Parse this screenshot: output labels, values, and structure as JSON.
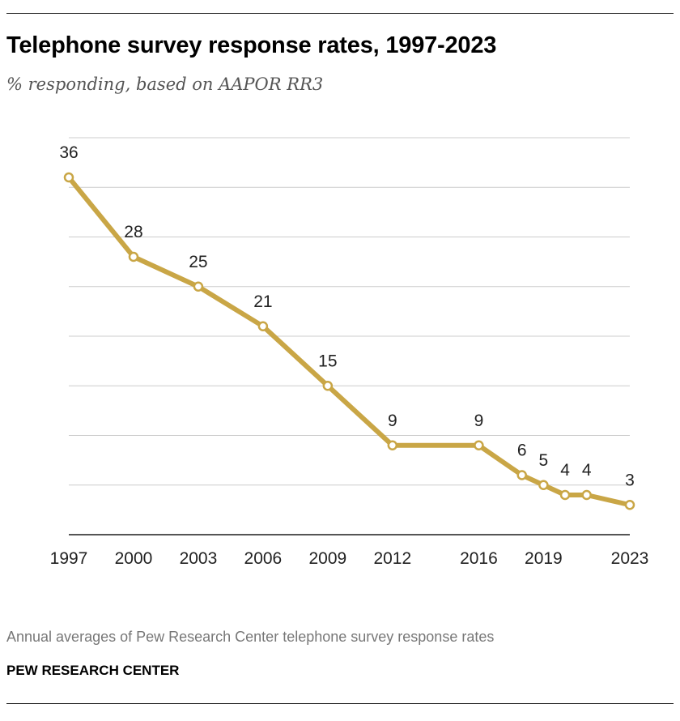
{
  "header": {
    "title": "Telephone survey response rates, 1997-2023",
    "subtitle": "% responding, based on AAPOR RR3"
  },
  "footer": {
    "note": "Annual averages of Pew Research Center telephone survey response rates",
    "source": "PEW RESEARCH CENTER"
  },
  "colors": {
    "line": "#c9a646",
    "grid": "#cccccc",
    "axis": "#555555"
  },
  "chart_data": {
    "type": "line",
    "title": "Telephone survey response rates, 1997-2023",
    "subtitle": "% responding, based on AAPOR RR3",
    "xlabel": "",
    "ylabel": "",
    "xlim": [
      1997,
      2023
    ],
    "ylim": [
      0,
      40
    ],
    "grid": true,
    "legend": "none",
    "x_ticks": [
      1997,
      2000,
      2003,
      2006,
      2009,
      2012,
      2016,
      2019,
      2023
    ],
    "series": [
      {
        "x": [
          1997,
          2000,
          2003,
          2006,
          2009,
          2012,
          2016,
          2018,
          2019,
          2020,
          2021,
          2023
        ],
        "values": [
          36,
          28,
          25,
          21,
          15,
          9,
          9,
          6,
          5,
          4,
          4,
          3
        ],
        "labels": [
          "36",
          "28",
          "25",
          "21",
          "15",
          "9",
          "9",
          "6",
          "5",
          "4",
          "4",
          "3"
        ]
      }
    ]
  }
}
